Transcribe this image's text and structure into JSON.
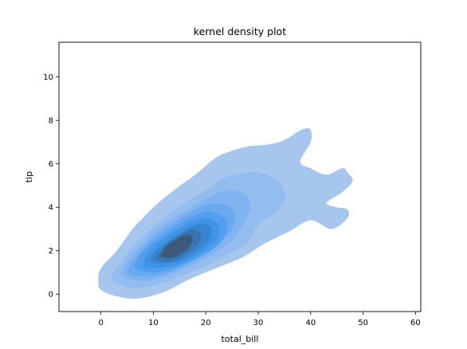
{
  "chart_data": {
    "type": "kde",
    "title": "kernel density plot",
    "xlabel": "total_bill",
    "ylabel": "tip",
    "xlim": [
      -8,
      61
    ],
    "ylim": [
      -0.8,
      11.6
    ],
    "xticks": [
      0,
      10,
      20,
      30,
      40,
      50,
      60
    ],
    "yticks": [
      0,
      2,
      4,
      6,
      8,
      10
    ],
    "grid": false,
    "fill": true,
    "colors": {
      "lightest": "#a7c7ef",
      "base": "#1f77b4",
      "darkest": "#3d5a7a",
      "axes": "#000000",
      "background": "#ffffff"
    },
    "contours": [
      {
        "level": 1,
        "color": "#a6c6ee",
        "points": [
          [
            -0.5,
            0.6
          ],
          [
            0,
            0.2
          ],
          [
            3,
            -0.1
          ],
          [
            7,
            -0.2
          ],
          [
            12,
            0.1
          ],
          [
            17,
            0.7
          ],
          [
            22,
            1.2
          ],
          [
            27,
            1.7
          ],
          [
            31,
            2.3
          ],
          [
            36,
            2.9
          ],
          [
            40,
            3.4
          ],
          [
            44,
            3.0
          ],
          [
            47,
            3.5
          ],
          [
            47,
            3.9
          ],
          [
            45,
            4.0
          ],
          [
            43,
            4.2
          ],
          [
            46,
            4.7
          ],
          [
            48,
            5.2
          ],
          [
            47,
            5.6
          ],
          [
            46,
            5.8
          ],
          [
            43,
            5.5
          ],
          [
            40,
            5.8
          ],
          [
            38,
            6.1
          ],
          [
            40,
            7.0
          ],
          [
            40,
            7.55
          ],
          [
            38.5,
            7.6
          ],
          [
            35,
            7.1
          ],
          [
            32,
            6.9
          ],
          [
            28,
            6.8
          ],
          [
            25,
            6.6
          ],
          [
            22,
            6.3
          ],
          [
            18,
            5.5
          ],
          [
            14,
            4.8
          ],
          [
            10,
            4.0
          ],
          [
            8,
            3.5
          ],
          [
            6,
            3.0
          ],
          [
            3,
            2.0
          ],
          [
            0,
            1.2
          ]
        ]
      },
      {
        "level": 2,
        "color": "#93bcef",
        "points": [
          [
            2,
            0.7
          ],
          [
            6,
            0.3
          ],
          [
            10,
            0.4
          ],
          [
            14,
            0.7
          ],
          [
            19,
            1.2
          ],
          [
            24,
            1.8
          ],
          [
            28,
            2.4
          ],
          [
            30,
            3.2
          ],
          [
            33,
            3.7
          ],
          [
            35,
            4.3
          ],
          [
            34.5,
            5.0
          ],
          [
            32,
            5.5
          ],
          [
            28,
            5.6
          ],
          [
            24,
            5.4
          ],
          [
            20,
            4.8
          ],
          [
            16,
            4.2
          ],
          [
            12,
            3.5
          ],
          [
            9,
            2.9
          ],
          [
            6,
            2.2
          ],
          [
            4,
            1.5
          ]
        ]
      },
      {
        "level": 3,
        "color": "#7fb3f1",
        "points": [
          [
            4,
            0.9
          ],
          [
            8,
            0.6
          ],
          [
            12,
            0.8
          ],
          [
            16,
            1.2
          ],
          [
            21,
            1.8
          ],
          [
            25,
            2.5
          ],
          [
            27,
            3.2
          ],
          [
            28.5,
            4.0
          ],
          [
            27.5,
            4.6
          ],
          [
            24,
            4.8
          ],
          [
            20,
            4.4
          ],
          [
            16,
            3.8
          ],
          [
            12,
            3.2
          ],
          [
            9,
            2.6
          ],
          [
            6,
            1.8
          ]
        ]
      },
      {
        "level": 4,
        "color": "#6aa9f0",
        "points": [
          [
            5,
            1.0
          ],
          [
            9,
            0.8
          ],
          [
            13,
            1.0
          ],
          [
            17,
            1.5
          ],
          [
            21,
            2.1
          ],
          [
            24,
            2.7
          ],
          [
            25.5,
            3.3
          ],
          [
            25,
            3.9
          ],
          [
            22,
            4.2
          ],
          [
            18,
            3.9
          ],
          [
            14,
            3.3
          ],
          [
            10,
            2.6
          ],
          [
            7,
            1.8
          ]
        ]
      },
      {
        "level": 5,
        "color": "#519ef0",
        "points": [
          [
            6.5,
            1.2
          ],
          [
            10,
            1.0
          ],
          [
            14,
            1.2
          ],
          [
            18,
            1.6
          ],
          [
            22,
            2.2
          ],
          [
            24,
            2.9
          ],
          [
            23.5,
            3.5
          ],
          [
            20.5,
            3.8
          ],
          [
            17,
            3.5
          ],
          [
            13,
            2.9
          ],
          [
            9.5,
            2.3
          ],
          [
            7.5,
            1.8
          ]
        ]
      },
      {
        "level": 6,
        "color": "#3f94e8",
        "points": [
          [
            8,
            1.3
          ],
          [
            11,
            1.2
          ],
          [
            15,
            1.4
          ],
          [
            19,
            1.9
          ],
          [
            22,
            2.5
          ],
          [
            22.5,
            3.1
          ],
          [
            20.5,
            3.5
          ],
          [
            17,
            3.3
          ],
          [
            13.5,
            2.8
          ],
          [
            10,
            2.2
          ]
        ]
      },
      {
        "level": 7,
        "color": "#3785d2",
        "points": [
          [
            9.5,
            1.5
          ],
          [
            12,
            1.4
          ],
          [
            15.5,
            1.6
          ],
          [
            19,
            2.1
          ],
          [
            21,
            2.7
          ],
          [
            20.5,
            3.2
          ],
          [
            18,
            3.2
          ],
          [
            15,
            2.8
          ],
          [
            12,
            2.3
          ],
          [
            10,
            1.9
          ]
        ]
      },
      {
        "level": 8,
        "color": "#3974b2",
        "points": [
          [
            10.5,
            1.6
          ],
          [
            13,
            1.5
          ],
          [
            16,
            1.8
          ],
          [
            18.5,
            2.3
          ],
          [
            19,
            2.8
          ],
          [
            17.5,
            3.0
          ],
          [
            15,
            2.7
          ],
          [
            12.5,
            2.3
          ],
          [
            11,
            1.9
          ]
        ]
      },
      {
        "level": 9,
        "color": "#3d5a7a",
        "points": [
          [
            11.5,
            1.75
          ],
          [
            14,
            1.7
          ],
          [
            16.5,
            2.1
          ],
          [
            17.5,
            2.55
          ],
          [
            16.5,
            2.75
          ],
          [
            14.5,
            2.55
          ],
          [
            12.5,
            2.2
          ]
        ]
      }
    ]
  }
}
